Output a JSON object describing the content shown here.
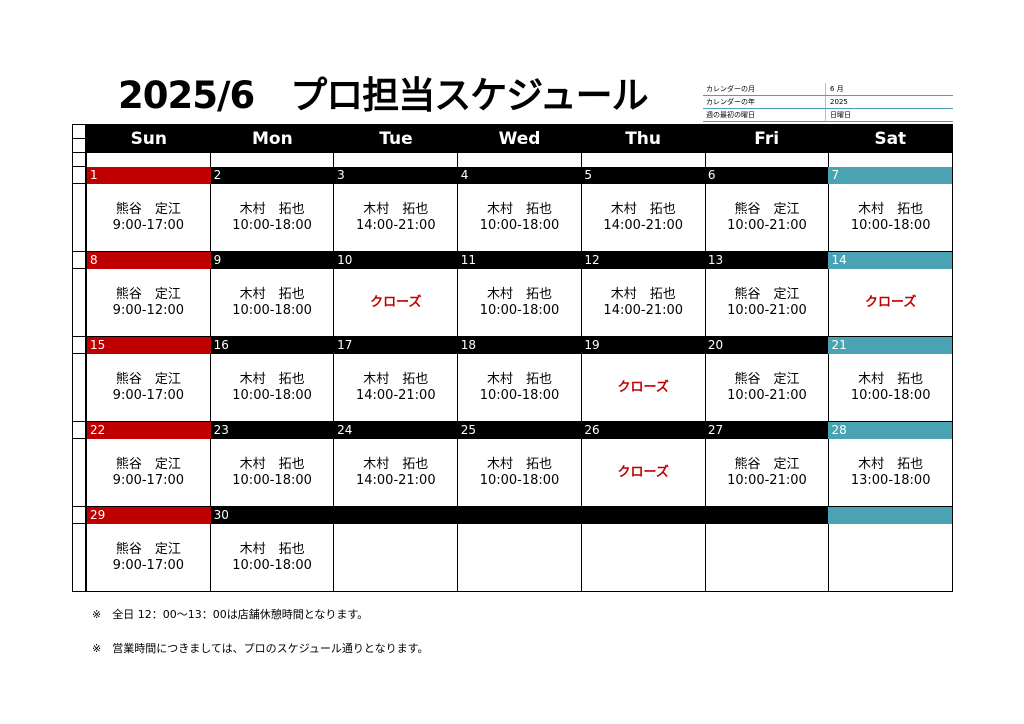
{
  "title": "2025/6　プロ担当スケジュール",
  "settings": [
    {
      "label": "カレンダーの月",
      "value": "6 月"
    },
    {
      "label": "カレンダーの年",
      "value": "2025"
    },
    {
      "label": "週の最初の曜日",
      "value": "日曜日"
    }
  ],
  "weekdays": [
    "Sun",
    "Mon",
    "Tue",
    "Wed",
    "Thu",
    "Fri",
    "Sat"
  ],
  "weeks": [
    [
      {
        "day": "1",
        "name": "熊谷　定江",
        "time": "9:00-17:00"
      },
      {
        "day": "2",
        "name": "木村　拓也",
        "time": "10:00-18:00"
      },
      {
        "day": "3",
        "name": "木村　拓也",
        "time": "14:00-21:00"
      },
      {
        "day": "4",
        "name": "木村　拓也",
        "time": "10:00-18:00"
      },
      {
        "day": "5",
        "name": "木村　拓也",
        "time": "14:00-21:00"
      },
      {
        "day": "6",
        "name": "熊谷　定江",
        "time": "10:00-21:00"
      },
      {
        "day": "7",
        "name": "木村　拓也",
        "time": "10:00-18:00"
      }
    ],
    [
      {
        "day": "8",
        "name": "熊谷　定江",
        "time": "9:00-12:00"
      },
      {
        "day": "9",
        "name": "木村　拓也",
        "time": "10:00-18:00"
      },
      {
        "day": "10",
        "closed": "クローズ"
      },
      {
        "day": "11",
        "name": "木村　拓也",
        "time": "10:00-18:00"
      },
      {
        "day": "12",
        "name": "木村　拓也",
        "time": "14:00-21:00"
      },
      {
        "day": "13",
        "name": "熊谷　定江",
        "time": "10:00-21:00"
      },
      {
        "day": "14",
        "closed": "クローズ"
      }
    ],
    [
      {
        "day": "15",
        "name": "熊谷　定江",
        "time": "9:00-17:00"
      },
      {
        "day": "16",
        "name": "木村　拓也",
        "time": "10:00-18:00"
      },
      {
        "day": "17",
        "name": "木村　拓也",
        "time": "14:00-21:00"
      },
      {
        "day": "18",
        "name": "木村　拓也",
        "time": "10:00-18:00"
      },
      {
        "day": "19",
        "closed": "クローズ"
      },
      {
        "day": "20",
        "name": "熊谷　定江",
        "time": "10:00-21:00"
      },
      {
        "day": "21",
        "name": "木村　拓也",
        "time": "10:00-18:00"
      }
    ],
    [
      {
        "day": "22",
        "name": "熊谷　定江",
        "time": "9:00-17:00"
      },
      {
        "day": "23",
        "name": "木村　拓也",
        "time": "10:00-18:00"
      },
      {
        "day": "24",
        "name": "木村　拓也",
        "time": "14:00-21:00"
      },
      {
        "day": "25",
        "name": "木村　拓也",
        "time": "10:00-18:00"
      },
      {
        "day": "26",
        "closed": "クローズ"
      },
      {
        "day": "27",
        "name": "熊谷　定江",
        "time": "10:00-21:00"
      },
      {
        "day": "28",
        "name": "木村　拓也",
        "time": "13:00-18:00"
      }
    ],
    [
      {
        "day": "29",
        "name": "熊谷　定江",
        "time": "9:00-17:00"
      },
      {
        "day": "30",
        "name": "木村　拓也",
        "time": "10:00-18:00"
      },
      {
        "day": ""
      },
      {
        "day": ""
      },
      {
        "day": ""
      },
      {
        "day": ""
      },
      {
        "day": ""
      }
    ]
  ],
  "notes": [
    "※　全日 12：00～13：00は店舗休憩時間となります。",
    "※　営業時間につきましては、プロのスケジュール通りとなります。"
  ]
}
